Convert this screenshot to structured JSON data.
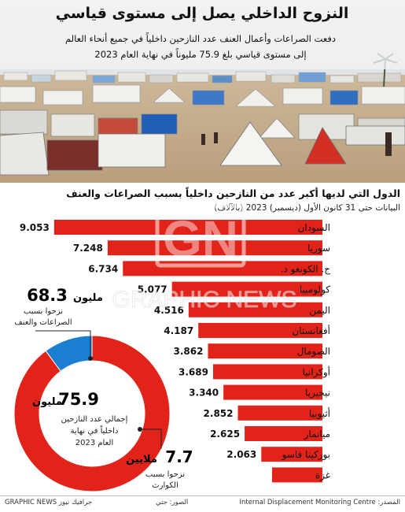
{
  "header": {
    "title": "النزوح الداخلي يصل إلى مستوى قياسي",
    "subtitle_line1": "دفعت الصراعات وأعمال العنف عدد النازحين داخلياً في جميع أنحاء العالم",
    "subtitle_line2": "إلى مستوى قياسي بلغ 75.9 مليوناً في نهاية العام 2023"
  },
  "chart_data": [
    {
      "type": "bar",
      "orientation": "horizontal",
      "title": "الدول التي لديها أكبر عدد من النازحين داخلياً بسبب الصراعات والعنف",
      "subtitle": "البيانات حتى 31 كانون الأول (ديسمبر) 2023 (بالآلاف)",
      "categories": [
        "السودان",
        "سوريا",
        "ج. الكونغو د.",
        "كولومبيا",
        "اليمن",
        "أفغانستان",
        "الصومال",
        "أوكرانيا",
        "نيجيريا",
        "أثيوبيا",
        "ميانمار",
        "بوركينا فاسو",
        "غزة"
      ],
      "values": [
        9053,
        7248,
        6734,
        5077,
        4516,
        4187,
        3862,
        3689,
        3340,
        2852,
        2625,
        2063,
        1700
      ],
      "value_labels": [
        "9.053",
        "7.248",
        "6.734",
        "5.077",
        "4.516",
        "4.187",
        "3.862",
        "3.689",
        "3.340",
        "2.852",
        "2.625",
        "2.063",
        ""
      ],
      "ylim": [
        0,
        9500
      ],
      "color": "#e2231a"
    },
    {
      "type": "pie",
      "style": "donut",
      "total_label": "75.9 مليون",
      "total_caption": "إجمالي عدد النازحين داخلياً في نهاية العام 2023",
      "slices": [
        {
          "value": 68.3,
          "label": "68.3 مليون",
          "caption": "نزحوا بسبب الصراعات والعنف",
          "color": "#e2231a"
        },
        {
          "value": 7.7,
          "label": "7.7 ملايين",
          "caption": "نزحوا بسبب الكوارث",
          "color": "#1a7fd1"
        }
      ]
    }
  ],
  "donut_text": {
    "total_value": "75.9",
    "total_unit": "مليون",
    "total_caption1": "إجمالي عدد النازحين",
    "total_caption2": "داخلياً في نهاية",
    "total_caption3": "العام 2023",
    "conflict_value": "68.3",
    "conflict_unit": "مليون",
    "conflict_caption1": "نزحوا بسبب",
    "conflict_caption2": "الصراعات والعنف",
    "disaster_value": "7.7",
    "disaster_unit": "ملايين",
    "disaster_caption1": "نزحوا بسبب",
    "disaster_caption2": "الكوارث"
  },
  "footer": {
    "source": "المصدر: Internal Displacement Monitoring Centre",
    "photo": "الصور: جتي",
    "brand": "GRAPHIC NEWS جرافيك نيوز"
  },
  "watermark": {
    "logo": "GN",
    "text": "GRAPHIC NEWS"
  },
  "colors": {
    "bar": "#e2231a",
    "disaster": "#1a7fd1"
  }
}
